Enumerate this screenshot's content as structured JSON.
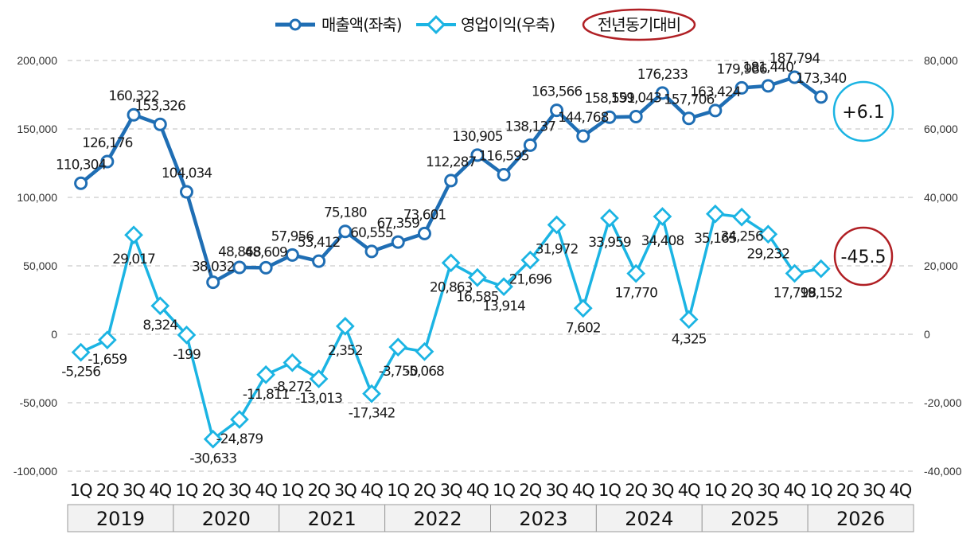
{
  "chart_data": {
    "type": "line",
    "legend": {
      "series1_label": "매출액(좌축)",
      "series2_label": "영업이익(우축)",
      "note_label": "전년동기대비"
    },
    "colors": {
      "sales": "#1f6eb4",
      "profit": "#1bb4e3",
      "note_ring": "#b01f24",
      "grid": "#c9c9c9",
      "year_box": "#f2f2f2"
    },
    "left_axis": {
      "ylim": [
        -100000,
        200000
      ],
      "ticks": [
        "200,000",
        "150,000",
        "100,000",
        "50,000",
        "0",
        "-50,000",
        "-100,000"
      ]
    },
    "right_axis": {
      "ylim": [
        -40000,
        80000
      ],
      "ticks": [
        "80,000",
        "60,000",
        "40,000",
        "20,000",
        "0",
        "-20,000",
        "-40,000"
      ]
    },
    "quarters": [
      "1Q",
      "2Q",
      "3Q",
      "4Q"
    ],
    "years": [
      "2019",
      "2020",
      "2021",
      "2022",
      "2023",
      "2024",
      "2025",
      "2026"
    ],
    "series": [
      {
        "name": "매출액(좌축)",
        "axis": "left",
        "values": [
          110304,
          126176,
          160322,
          153326,
          104034,
          38032,
          48868,
          48609,
          57956,
          53412,
          75180,
          60555,
          67359,
          73601,
          112287,
          130905,
          116595,
          138137,
          163566,
          144768,
          158591,
          159043,
          176233,
          157706,
          163424,
          179986,
          181440,
          187794,
          173340
        ],
        "labels": [
          "110,304",
          "126,176",
          "160,322",
          "153,326",
          "104,034",
          "38,032",
          "48,868",
          "48,609",
          "57,956",
          "53,412",
          "75,180",
          "60,555",
          "67,359",
          "73,601",
          "112,287",
          "130,905",
          "116,595",
          "138,137",
          "163,566",
          "144,768",
          "158,591",
          "159,043",
          "176,233",
          "157,706",
          "163,424",
          "179,986",
          "181,440",
          "187,794",
          "173,340"
        ]
      },
      {
        "name": "영업이익(우축)",
        "axis": "right",
        "values": [
          -5256,
          -1659,
          29017,
          8324,
          -199,
          -30633,
          -24879,
          -11811,
          -8272,
          -13013,
          2352,
          -17342,
          -3750,
          -5068,
          20863,
          16585,
          13914,
          21696,
          31972,
          7602,
          33959,
          17770,
          34408,
          4325,
          35165,
          34256,
          29232,
          17798,
          19152
        ],
        "labels": [
          "-5,256",
          "-1,659",
          "29,017",
          "8,324",
          "-199",
          "-30,633",
          "-24,879",
          "-11,811",
          "-8,272",
          "-13,013",
          "2,352",
          "-17,342",
          "-3,750",
          "-5,068",
          "20,863",
          "16,585",
          "13,914",
          "21,696",
          "31,972",
          "7,602",
          "33,959",
          "17,770",
          "34,408",
          "4,325",
          "35,165",
          "34,256",
          "29,232",
          "17,798",
          "19,152"
        ]
      }
    ],
    "yoy_sales": "+6.1",
    "yoy_profit": "-45.5"
  }
}
